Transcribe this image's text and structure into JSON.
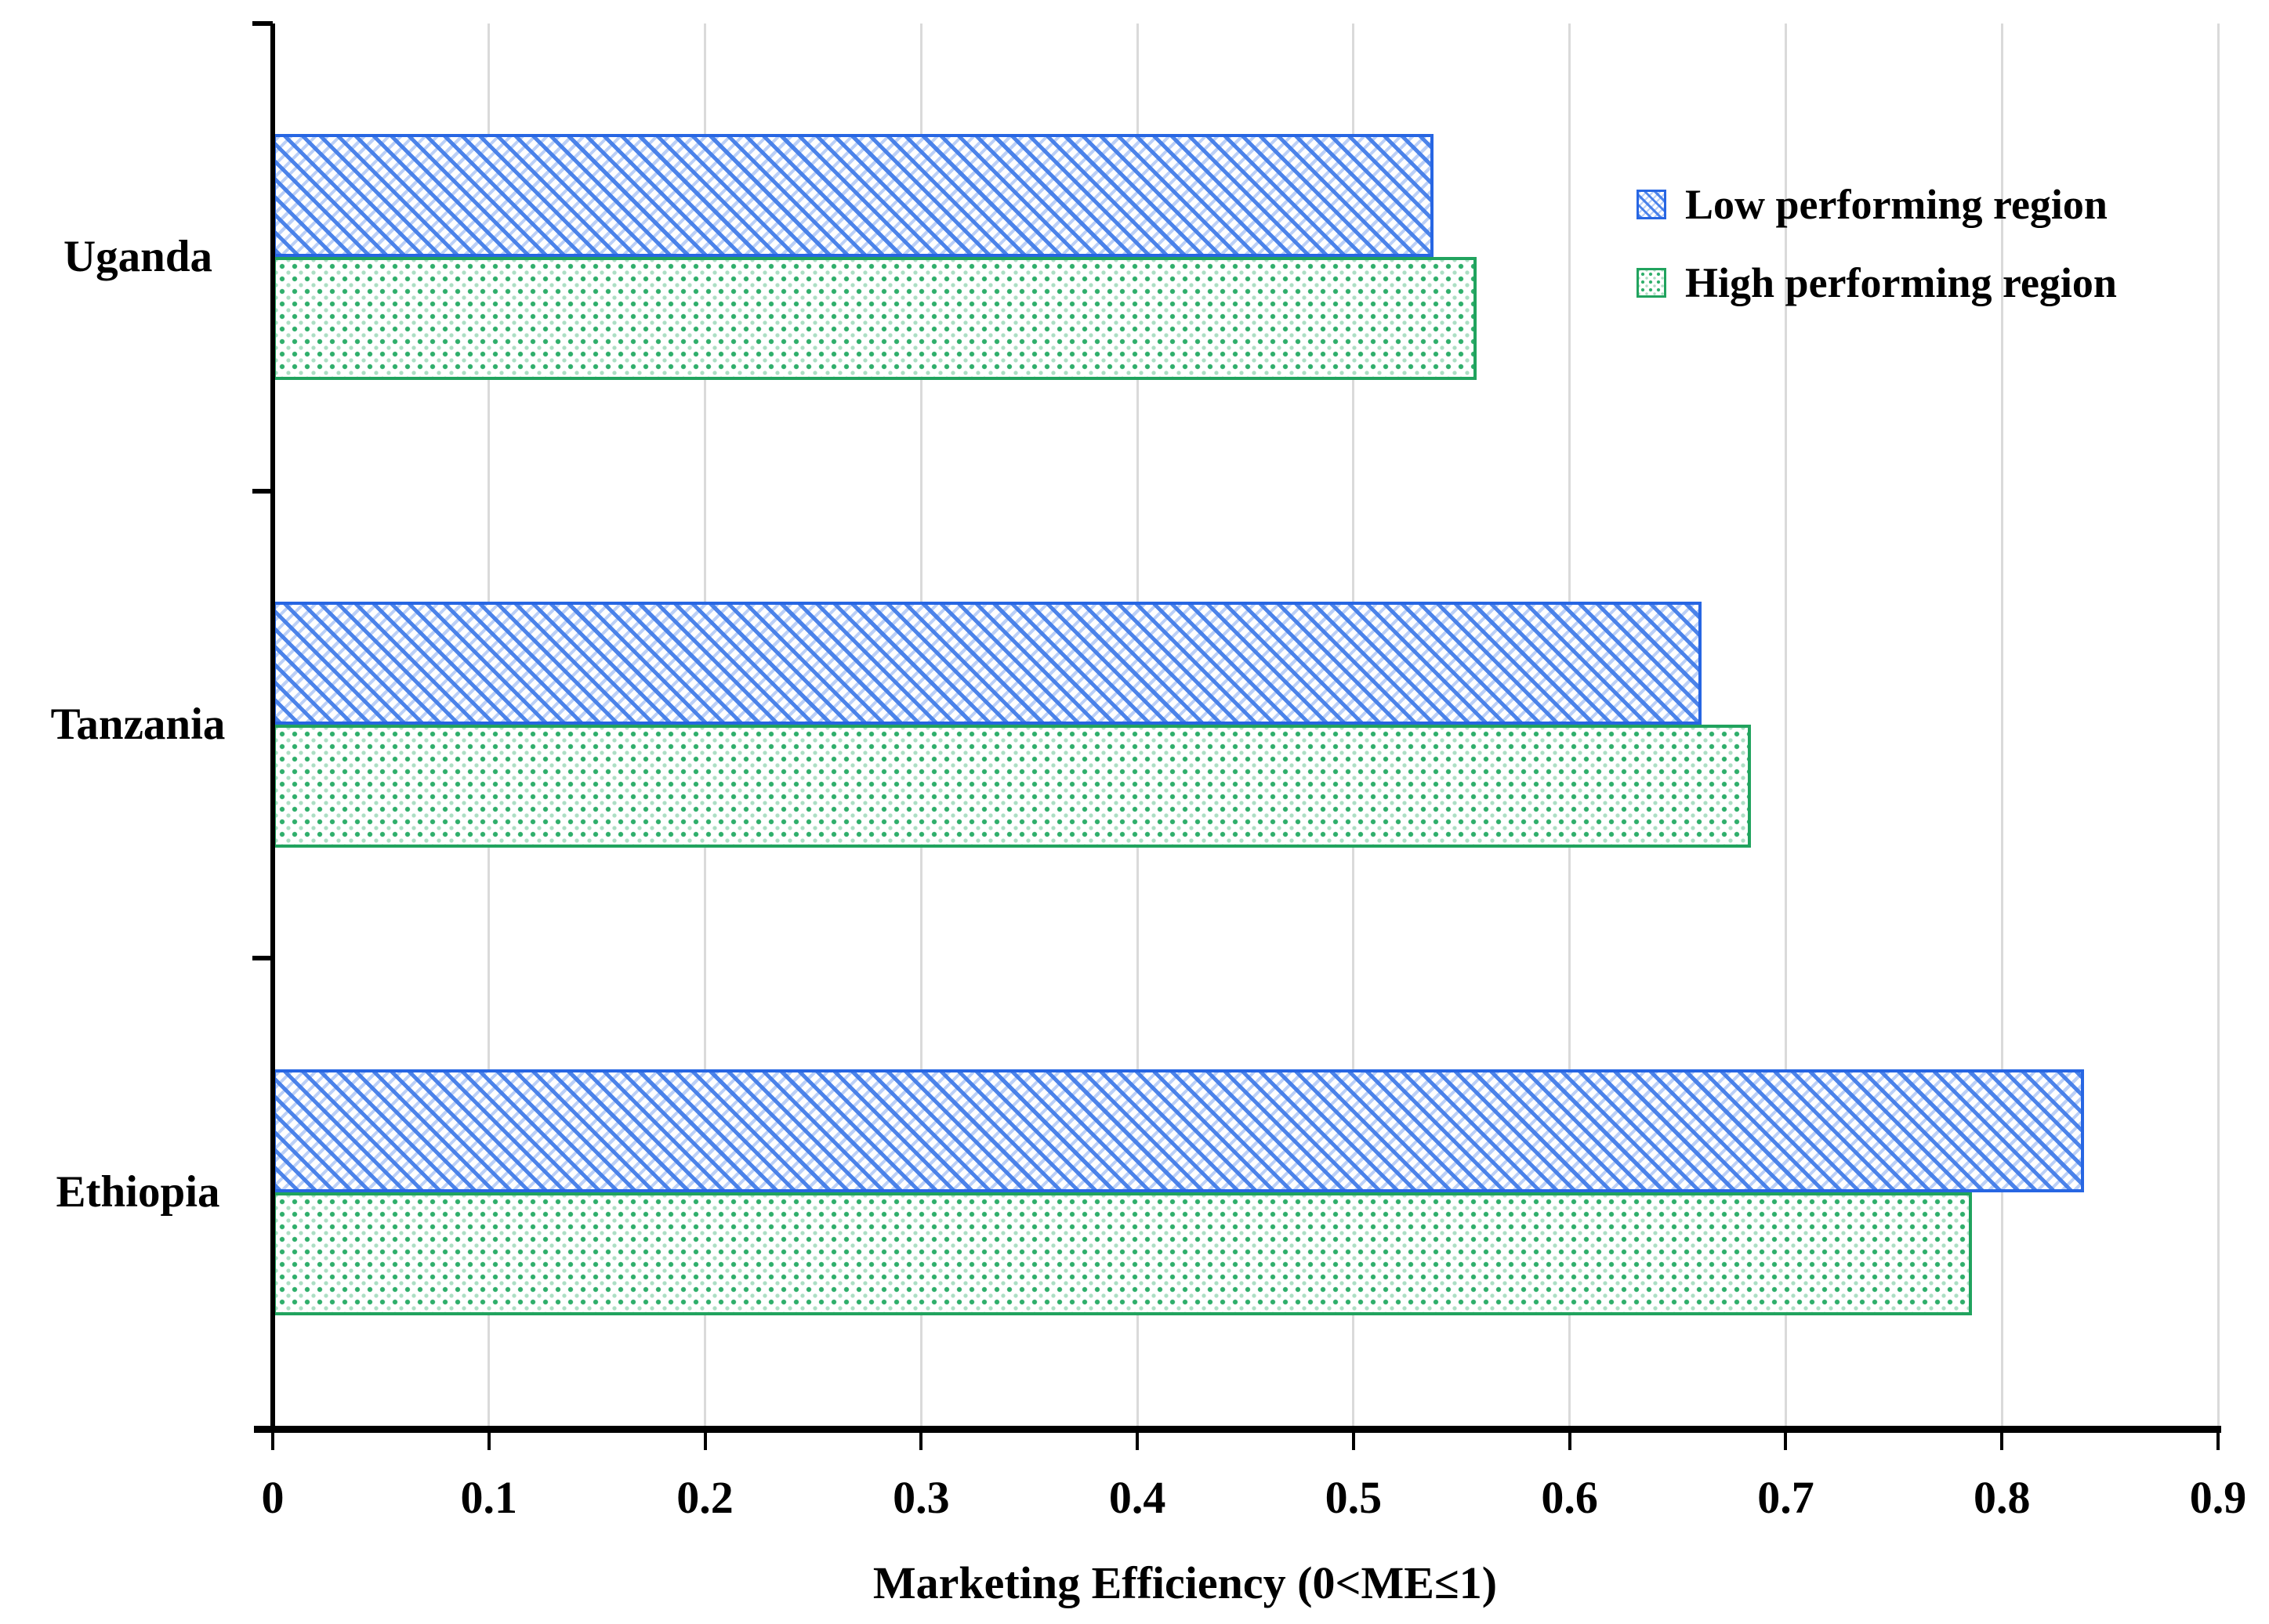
{
  "chart_data": {
    "type": "bar",
    "orientation": "horizontal",
    "title": "",
    "categories": [
      "Uganda",
      "Tanzania",
      "Ethiopia"
    ],
    "series": [
      {
        "name": "Low performing region",
        "pattern": "blue-diagonal-weave-hatch",
        "color": "#2766e3",
        "values": [
          0.537,
          0.661,
          0.838
        ]
      },
      {
        "name": "High performing region",
        "pattern": "green-dotted",
        "color": "#21a35e",
        "values": [
          0.557,
          0.684,
          0.786
        ]
      }
    ],
    "xlabel": "Marketing Efficiency (0<ME≤1)",
    "ylabel": "",
    "xlim": [
      0,
      0.9
    ],
    "x_ticks": [
      "0",
      "0.1",
      "0.2",
      "0.3",
      "0.4",
      "0.5",
      "0.6",
      "0.7",
      "0.8",
      "0.9"
    ],
    "grid": "vertical",
    "gridline_color": "#dadada",
    "axis_color": "#000000",
    "background_color": "#ffffff",
    "legend_position": "top-right-inside"
  }
}
